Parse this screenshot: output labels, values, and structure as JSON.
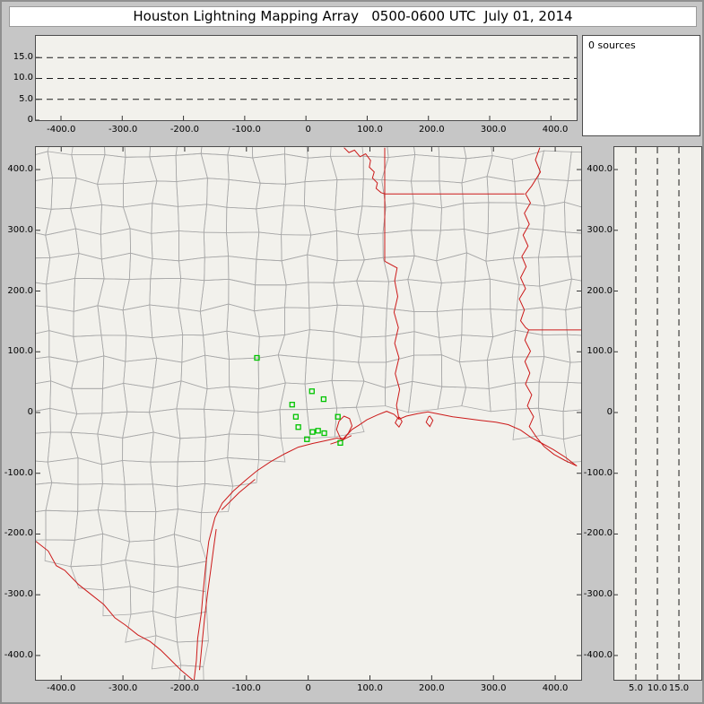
{
  "title": "Houston Lightning Mapping Array   0500-0600 UTC  July 01, 2014",
  "sources_label": "0 sources",
  "colors": {
    "frame_bg": "#c6c6c6",
    "panel_bg": "#f2f1ec",
    "title_bg": "#ffffff",
    "county_line": "#a8a8a8",
    "state_line": "#cc1a1a",
    "station": "#00c400",
    "dash_line": "#1a1a1a",
    "tick": "#333333",
    "panel_border": "#4c4c4c"
  },
  "axes": {
    "ew_tick_values_km": [
      -400,
      -300,
      -200,
      -100,
      0,
      100,
      200,
      300,
      400
    ],
    "ew_tick_labels": [
      "-400.0",
      "-300.0",
      "-200.0",
      "-100.0",
      "0",
      "100.0",
      "200.0",
      "300.0",
      "400.0"
    ],
    "ns_tick_values_km": [
      400,
      300,
      200,
      100,
      0,
      -100,
      -200,
      -300,
      -400
    ],
    "ns_tick_labels": [
      "400.0",
      "300.0",
      "200.0",
      "100.0",
      "0",
      "-100.0",
      "-200.0",
      "-300.0",
      "-400.0"
    ],
    "alt_tick_values_km": [
      15,
      10,
      5,
      0
    ],
    "alt_tick_labels": [
      "15.0",
      "10.0",
      "5.0",
      "0"
    ],
    "alt_right_tick_values_km": [
      5,
      10,
      15
    ],
    "alt_right_tick_labels": [
      "5.0",
      "10.0",
      "15.0"
    ],
    "altitude_dashes_km": [
      5,
      10,
      15
    ]
  },
  "map": {
    "xlim_km": [
      -441,
      442
    ],
    "ylim_km": [
      -440,
      437
    ],
    "coastline": [
      [
        -185,
        -442
      ],
      [
        -181,
        -408
      ],
      [
        -179,
        -372
      ],
      [
        -173,
        -330
      ],
      [
        -170,
        -294
      ],
      [
        -166,
        -252
      ],
      [
        -161,
        -212
      ],
      [
        -151,
        -173
      ],
      [
        -139,
        -149
      ],
      [
        -121,
        -129
      ],
      [
        -101,
        -111
      ],
      [
        -83,
        -96
      ],
      [
        -61,
        -81
      ],
      [
        -38,
        -68
      ],
      [
        -16,
        -57
      ],
      [
        7,
        -51
      ],
      [
        30,
        -46
      ],
      [
        47,
        -42
      ],
      [
        57,
        -45
      ],
      [
        63,
        -37
      ],
      [
        71,
        -28
      ],
      [
        82,
        -21
      ],
      [
        95,
        -12
      ],
      [
        112,
        -4
      ],
      [
        127,
        2
      ],
      [
        139,
        -3
      ],
      [
        147,
        -11
      ],
      [
        159,
        -6
      ],
      [
        177,
        -2
      ],
      [
        194,
        1
      ],
      [
        214,
        -3
      ],
      [
        234,
        -7
      ],
      [
        257,
        -10
      ],
      [
        279,
        -13
      ],
      [
        304,
        -16
      ],
      [
        324,
        -20
      ],
      [
        344,
        -29
      ],
      [
        361,
        -41
      ],
      [
        379,
        -51
      ],
      [
        397,
        -61
      ],
      [
        417,
        -74
      ],
      [
        435,
        -88
      ]
    ],
    "rio_grande": [
      [
        -441,
        -212
      ],
      [
        -421,
        -228
      ],
      [
        -408,
        -252
      ],
      [
        -394,
        -260
      ],
      [
        -372,
        -283
      ],
      [
        -351,
        -300
      ],
      [
        -331,
        -316
      ],
      [
        -313,
        -338
      ],
      [
        -296,
        -350
      ],
      [
        -276,
        -366
      ],
      [
        -256,
        -377
      ],
      [
        -239,
        -391
      ],
      [
        -223,
        -407
      ],
      [
        -206,
        -424
      ],
      [
        -185,
        -442
      ]
    ],
    "state_borders": [
      [
        [
          58,
          436
        ],
        [
          66,
          428
        ],
        [
          75,
          432
        ],
        [
          84,
          421
        ],
        [
          93,
          426
        ],
        [
          101,
          415
        ],
        [
          99,
          404
        ],
        [
          107,
          396
        ],
        [
          104,
          386
        ],
        [
          112,
          378
        ],
        [
          110,
          369
        ],
        [
          118,
          362
        ],
        [
          124,
          360
        ]
      ],
      [
        [
          124,
          436
        ],
        [
          124,
          249
        ]
      ],
      [
        [
          124,
          360
        ],
        [
          350,
          360
        ]
      ],
      [
        [
          147,
          -11
        ],
        [
          143,
          12
        ],
        [
          148,
          38
        ],
        [
          141,
          64
        ],
        [
          147,
          90
        ],
        [
          140,
          114
        ],
        [
          146,
          140
        ],
        [
          139,
          165
        ],
        [
          145,
          191
        ],
        [
          140,
          217
        ],
        [
          144,
          238
        ],
        [
          124,
          249
        ]
      ],
      [
        [
          375,
          436
        ],
        [
          368,
          416
        ],
        [
          376,
          396
        ],
        [
          362,
          373
        ],
        [
          352,
          360
        ],
        [
          360,
          345
        ],
        [
          350,
          328
        ],
        [
          358,
          310
        ],
        [
          348,
          292
        ],
        [
          356,
          274
        ],
        [
          346,
          257
        ],
        [
          353,
          240
        ],
        [
          344,
          222
        ],
        [
          352,
          204
        ],
        [
          342,
          187
        ],
        [
          350,
          169
        ],
        [
          344,
          151
        ],
        [
          352,
          140
        ],
        [
          357,
          136
        ]
      ],
      [
        [
          357,
          136
        ],
        [
          442,
          136
        ]
      ],
      [
        [
          357,
          136
        ],
        [
          351,
          119
        ],
        [
          360,
          101
        ],
        [
          351,
          84
        ],
        [
          359,
          65
        ],
        [
          352,
          47
        ],
        [
          362,
          29
        ],
        [
          355,
          11
        ],
        [
          365,
          -7
        ],
        [
          358,
          -23
        ],
        [
          370,
          -41
        ],
        [
          382,
          -56
        ],
        [
          398,
          -69
        ],
        [
          416,
          -79
        ],
        [
          435,
          -88
        ]
      ]
    ],
    "islands": [
      [
        [
          -176,
          -424
        ],
        [
          -172,
          -382
        ],
        [
          -168,
          -340
        ],
        [
          -163,
          -298
        ],
        [
          -158,
          -260
        ],
        [
          -153,
          -222
        ],
        [
          -149,
          -192
        ]
      ],
      [
        [
          -140,
          -160
        ],
        [
          -112,
          -132
        ],
        [
          -86,
          -110
        ]
      ],
      [
        [
          36,
          -52
        ],
        [
          54,
          -46
        ],
        [
          70,
          -38
        ]
      ]
    ],
    "bays": [
      [
        [
          52,
          -42
        ],
        [
          46,
          -28
        ],
        [
          50,
          -14
        ],
        [
          58,
          -6
        ],
        [
          67,
          -10
        ],
        [
          71,
          -22
        ],
        [
          65,
          -34
        ],
        [
          57,
          -43
        ]
      ],
      [
        [
          145,
          -9
        ],
        [
          141,
          -17
        ],
        [
          147,
          -24
        ],
        [
          152,
          -15
        ],
        [
          148,
          -8
        ]
      ],
      [
        [
          195,
          -7
        ],
        [
          191,
          -16
        ],
        [
          197,
          -23
        ],
        [
          202,
          -13
        ],
        [
          197,
          -6
        ]
      ]
    ]
  },
  "chart_data": {
    "type": "scatter",
    "title": "Houston Lightning Mapping Array   0500-0600 UTC  July 01, 2014",
    "source_count": 0,
    "legend_note": "green open squares = LMA station locations; no lightning sources in period",
    "panels": [
      {
        "name": "altitude_vs_east_west",
        "xlim": [
          -441,
          442
        ],
        "ylim": [
          0,
          20.2
        ],
        "x_ticks": [
          -400,
          -300,
          -200,
          -100,
          0,
          100,
          200,
          300,
          400
        ],
        "y_ticks": [
          15,
          10,
          5,
          0
        ],
        "dashed_gridlines_alt_km": [
          5,
          10,
          15
        ],
        "points": []
      },
      {
        "name": "source_count_box",
        "label": "0 sources"
      },
      {
        "name": "plan_view",
        "xlim": [
          -441,
          442
        ],
        "ylim": [
          -440,
          437
        ],
        "x_ticks": [
          -400,
          -300,
          -200,
          -100,
          0,
          100,
          200,
          300,
          400
        ],
        "y_ticks": [
          400,
          300,
          200,
          100,
          0,
          -100,
          -200,
          -300,
          -400
        ],
        "lma_stations_xy_km": [
          [
            -83,
            90
          ],
          [
            6,
            35
          ],
          [
            -26,
            13
          ],
          [
            25,
            22
          ],
          [
            -20,
            -7
          ],
          [
            -16,
            -24
          ],
          [
            7,
            -32
          ],
          [
            -2,
            -44
          ],
          [
            26,
            -34
          ],
          [
            48,
            -7
          ],
          [
            52,
            -50
          ],
          [
            16,
            -30
          ]
        ],
        "lightning_sources_xy_km": []
      },
      {
        "name": "altitude_vs_north_south",
        "xlim": [
          0,
          20.2
        ],
        "ylim": [
          -440,
          437
        ],
        "x_ticks": [
          5,
          10,
          15
        ],
        "y_ticks": [
          400,
          300,
          200,
          100,
          0,
          -100,
          -200,
          -300,
          -400
        ],
        "dashed_gridlines_alt_km": [
          5,
          10,
          15
        ],
        "points": []
      }
    ]
  }
}
